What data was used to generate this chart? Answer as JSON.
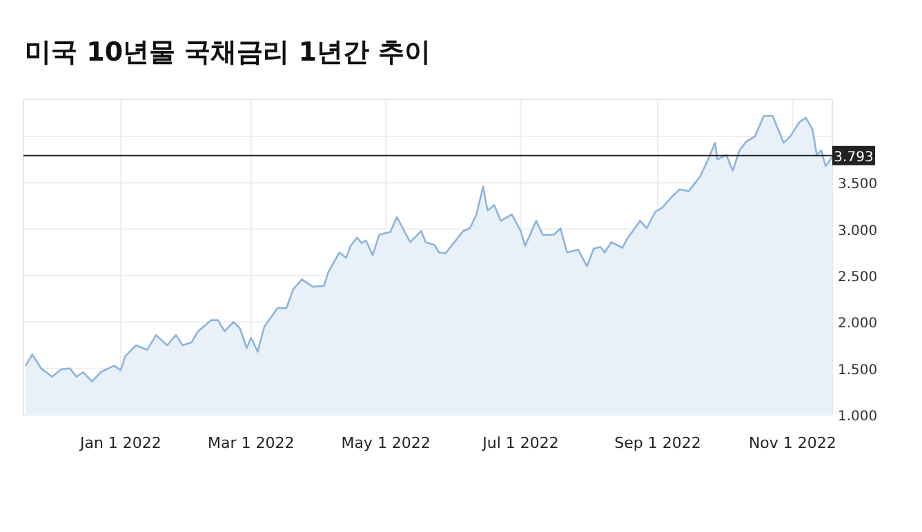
{
  "chart_data": {
    "type": "area",
    "title": "미국 10년물 국채금리 1년간 추이",
    "x": [
      "2021-11-19",
      "2021-11-22",
      "2021-11-26",
      "2021-12-01",
      "2021-12-05",
      "2021-12-09",
      "2021-12-12",
      "2021-12-15",
      "2021-12-19",
      "2021-12-23",
      "2021-12-29",
      "2022-01-01",
      "2022-01-03",
      "2022-01-08",
      "2022-01-13",
      "2022-01-17",
      "2022-01-22",
      "2022-01-26",
      "2022-01-29",
      "2022-02-02",
      "2022-02-05",
      "2022-02-11",
      "2022-02-14",
      "2022-02-17",
      "2022-02-21",
      "2022-02-24",
      "2022-02-27",
      "2022-03-01",
      "2022-03-04",
      "2022-03-07",
      "2022-03-13",
      "2022-03-17",
      "2022-03-20",
      "2022-03-24",
      "2022-03-29",
      "2022-04-03",
      "2022-04-05",
      "2022-04-10",
      "2022-04-13",
      "2022-04-15",
      "2022-04-18",
      "2022-04-20",
      "2022-04-22",
      "2022-04-25",
      "2022-04-28",
      "2022-05-03",
      "2022-05-06",
      "2022-05-12",
      "2022-05-17",
      "2022-05-19",
      "2022-05-23",
      "2022-05-25",
      "2022-05-28",
      "2022-06-02",
      "2022-06-05",
      "2022-06-08",
      "2022-06-11",
      "2022-06-14",
      "2022-06-16",
      "2022-06-19",
      "2022-06-22",
      "2022-06-27",
      "2022-07-01",
      "2022-07-03",
      "2022-07-08",
      "2022-07-11",
      "2022-07-16",
      "2022-07-19",
      "2022-07-22",
      "2022-07-27",
      "2022-07-31",
      "2022-08-03",
      "2022-08-06",
      "2022-08-08",
      "2022-08-11",
      "2022-08-16",
      "2022-08-18",
      "2022-08-24",
      "2022-08-27",
      "2022-08-31",
      "2022-09-03",
      "2022-09-07",
      "2022-09-11",
      "2022-09-15",
      "2022-09-20",
      "2022-09-23",
      "2022-09-27",
      "2022-09-28",
      "2022-10-02",
      "2022-10-05",
      "2022-10-08",
      "2022-10-11",
      "2022-10-15",
      "2022-10-19",
      "2022-10-23",
      "2022-10-28",
      "2022-10-31",
      "2022-11-04",
      "2022-11-07",
      "2022-11-10",
      "2022-11-12",
      "2022-11-14",
      "2022-11-16",
      "2022-11-19"
    ],
    "values": [
      1.53,
      1.65,
      1.5,
      1.41,
      1.49,
      1.5,
      1.41,
      1.46,
      1.36,
      1.46,
      1.53,
      1.48,
      1.63,
      1.75,
      1.7,
      1.86,
      1.75,
      1.86,
      1.75,
      1.78,
      1.9,
      2.02,
      2.02,
      1.9,
      2.0,
      1.93,
      1.72,
      1.83,
      1.68,
      1.95,
      2.15,
      2.15,
      2.35,
      2.46,
      2.38,
      2.39,
      2.54,
      2.75,
      2.69,
      2.82,
      2.91,
      2.85,
      2.88,
      2.72,
      2.94,
      2.97,
      3.13,
      2.86,
      2.98,
      2.86,
      2.83,
      2.75,
      2.74,
      2.89,
      2.98,
      3.01,
      3.16,
      3.46,
      3.2,
      3.26,
      3.09,
      3.16,
      2.98,
      2.82,
      3.09,
      2.94,
      2.94,
      3.01,
      2.75,
      2.78,
      2.6,
      2.79,
      2.81,
      2.75,
      2.86,
      2.8,
      2.89,
      3.09,
      3.01,
      3.19,
      3.23,
      3.34,
      3.43,
      3.41,
      3.56,
      3.71,
      3.93,
      3.75,
      3.8,
      3.63,
      3.85,
      3.94,
      4.0,
      4.22,
      4.22,
      3.93,
      4.0,
      4.15,
      4.2,
      4.08,
      3.8,
      3.85,
      3.68,
      3.78
    ],
    "color": "#8db4dc",
    "xlim": [
      "2021-11-18",
      "2022-11-19"
    ],
    "xticks": [
      {
        "value": "2022-01-01",
        "label": "Jan 1 2022"
      },
      {
        "value": "2022-03-01",
        "label": "Mar 1 2022"
      },
      {
        "value": "2022-05-01",
        "label": "May 1 2022"
      },
      {
        "value": "2022-07-01",
        "label": "Jul 1 2022"
      },
      {
        "value": "2022-09-01",
        "label": "Sep 1 2022"
      },
      {
        "value": "2022-11-01",
        "label": "Nov 1 2022"
      }
    ],
    "ylim": [
      1.0,
      4.4
    ],
    "yticks": [
      {
        "value": 1,
        "label": "1.000"
      },
      {
        "value": 1.5,
        "label": "1.500"
      },
      {
        "value": 2,
        "label": "2.000"
      },
      {
        "value": 2.5,
        "label": "2.500"
      },
      {
        "value": 3,
        "label": "3.000"
      },
      {
        "value": 3.5,
        "label": "3.500"
      },
      {
        "value": 4,
        "label": null
      }
    ],
    "ref_lines": [
      {
        "axis": "y",
        "value": 3.793,
        "label": "3.793",
        "color": "#222222"
      }
    ],
    "grid": true
  }
}
